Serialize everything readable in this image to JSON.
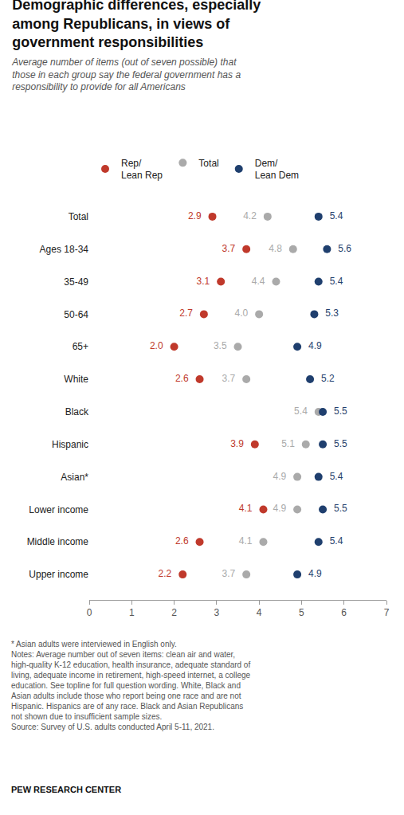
{
  "chart_data": {
    "type": "dot",
    "orientation": "horizontal",
    "title": "Demographic differences, especially\namong Republicans, in views of\ngovernment responsibilities",
    "subtitle": "Average number of items (out of seven possible) that\nthose in each group say the federal government has a\nresponsibility to provide for all Americans",
    "categories": [
      "Total",
      "Ages 18-34",
      "35-49",
      "50-64",
      "65+",
      "White",
      "Black",
      "Hispanic",
      "Asian*",
      "Lower income",
      "Middle income",
      "Upper income"
    ],
    "series": [
      {
        "name": "Rep/\nLean Rep",
        "color": "#c0392b",
        "values": [
          2.9,
          3.7,
          3.1,
          2.7,
          2.0,
          2.6,
          null,
          3.9,
          null,
          4.1,
          2.6,
          2.2
        ],
        "value_labels": [
          "2.9",
          "3.7",
          "3.1",
          "2.7",
          "2.0",
          "2.6",
          null,
          "3.9",
          null,
          "4.1",
          "2.6",
          "2.2"
        ]
      },
      {
        "name": "Total",
        "color": "#aaaaaa",
        "values": [
          4.2,
          4.8,
          4.4,
          4.0,
          3.5,
          3.7,
          5.4,
          5.1,
          4.9,
          4.9,
          4.1,
          3.7
        ],
        "value_labels": [
          "4.2",
          "4.8",
          "4.4",
          "4.0",
          "3.5",
          "3.7",
          "5.4",
          "5.1",
          "4.9",
          "4.9",
          "4.1",
          "3.7"
        ]
      },
      {
        "name": "Dem/\nLean Dem",
        "color": "#1f3f6e",
        "values": [
          5.4,
          5.6,
          5.4,
          5.3,
          4.9,
          5.2,
          5.5,
          5.5,
          5.4,
          5.5,
          5.4,
          4.9
        ],
        "value_labels": [
          "5.4",
          "5.6",
          "5.4",
          "5.3",
          "4.9",
          "5.2",
          "5.5",
          "5.5",
          "5.4",
          "5.5",
          "5.4",
          "4.9"
        ]
      }
    ],
    "xlim": [
      0,
      7
    ],
    "xticks": [
      0,
      1,
      2,
      3,
      4,
      5,
      6,
      7
    ],
    "data_labels": true,
    "grid": false,
    "legend": "top",
    "annotations": [
      "* Asian adults were interviewed in English only.",
      "Notes: Average number out of seven items: clean air and water,\nhigh-quality K-12 education, health insurance, adequate standard of\nliving, adequate income in retirement, high-speed internet, a college\neducation. See topline for full question wording. White, Black and\nAsian adults include those who report being one race and are not\nHispanic. Hispanics are of any race. Black and Asian Republicans\nnot shown due to insufficient sample sizes.\nSource: Survey of U.S. adults conducted April 5-11, 2021.",
      "PEW RESEARCH CENTER"
    ]
  }
}
